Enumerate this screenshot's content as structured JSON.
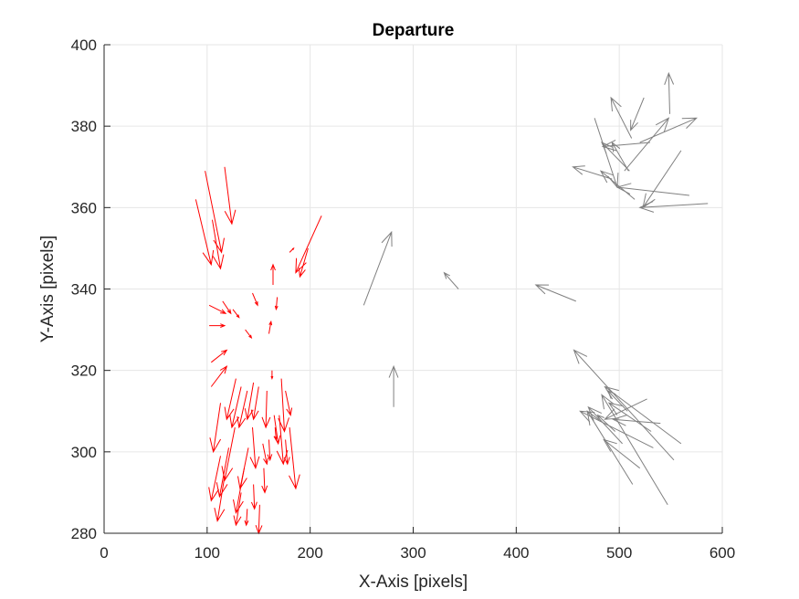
{
  "chart_data": {
    "type": "quiver",
    "title": "Departure",
    "xlabel": "X-Axis [pixels]",
    "ylabel": "Y-Axis [pixels]",
    "xlim": [
      0,
      600
    ],
    "ylim": [
      280,
      400
    ],
    "xticks": [
      0,
      100,
      200,
      300,
      400,
      500,
      600
    ],
    "yticks": [
      280,
      300,
      320,
      340,
      360,
      380,
      400
    ],
    "xtick_labels": [
      "0",
      "100",
      "200",
      "300",
      "400",
      "500",
      "600"
    ],
    "ytick_labels": [
      "280",
      "300",
      "320",
      "340",
      "360",
      "380",
      "400"
    ],
    "grid": true,
    "colors": {
      "red": "#ff0000",
      "gray": "#808080",
      "axis": "#262626",
      "grid": "#e6e6e6"
    },
    "series": [
      {
        "color": "red",
        "arrows": [
          [
            98,
            369,
            114,
            349
          ],
          [
            117,
            370,
            124,
            356
          ],
          [
            89,
            362,
            104,
            346
          ],
          [
            105,
            357,
            113,
            345
          ],
          [
            102,
            336,
            118,
            334
          ],
          [
            102,
            331,
            117,
            331
          ],
          [
            104,
            316,
            119,
            321
          ],
          [
            104,
            322,
            119,
            325
          ],
          [
            115,
            337,
            123,
            334
          ],
          [
            125,
            335,
            131,
            333
          ],
          [
            137,
            330,
            143,
            328
          ],
          [
            144,
            339,
            149,
            336
          ],
          [
            211,
            358,
            186,
            344
          ],
          [
            198,
            350,
            190,
            343
          ],
          [
            180,
            349,
            184,
            350
          ],
          [
            164,
            341,
            164,
            346
          ],
          [
            168,
            338,
            167,
            335
          ],
          [
            160,
            329,
            162,
            332
          ],
          [
            163,
            320,
            163,
            318
          ],
          [
            176,
            315,
            181,
            309
          ],
          [
            113,
            312,
            106,
            300
          ],
          [
            113,
            299,
            104,
            288
          ],
          [
            117,
            294,
            110,
            283
          ],
          [
            121,
            301,
            112,
            289
          ],
          [
            127,
            306,
            117,
            293
          ],
          [
            133,
            290,
            128,
            282
          ],
          [
            136,
            296,
            128,
            285
          ],
          [
            140,
            301,
            132,
            291
          ],
          [
            139,
            286,
            138,
            282
          ],
          [
            145,
            292,
            146,
            286
          ],
          [
            144,
            306,
            147,
            296
          ],
          [
            151,
            287,
            150,
            280
          ],
          [
            155,
            296,
            156,
            290
          ],
          [
            154,
            302,
            158,
            297
          ],
          [
            160,
            303,
            161,
            298
          ],
          [
            170,
            309,
            174,
            297
          ],
          [
            176,
            303,
            178,
            297
          ],
          [
            180,
            306,
            186,
            291
          ],
          [
            166,
            306,
            167,
            303
          ],
          [
            128,
            318,
            119,
            308
          ],
          [
            133,
            316,
            124,
            306
          ],
          [
            139,
            315,
            131,
            306
          ],
          [
            145,
            317,
            139,
            308
          ],
          [
            150,
            316,
            145,
            308
          ],
          [
            158,
            315,
            157,
            306
          ],
          [
            165,
            309,
            169,
            302
          ],
          [
            172,
            318,
            175,
            305
          ]
        ]
      },
      {
        "color": "gray",
        "arrows": [
          [
            252,
            336,
            279,
            354
          ],
          [
            344,
            340,
            330,
            344
          ],
          [
            281,
            311,
            281,
            321
          ],
          [
            458,
            337,
            419,
            341
          ],
          [
            476,
            382,
            498,
            365
          ],
          [
            505,
            369,
            548,
            382
          ],
          [
            510,
            369,
            483,
            376
          ],
          [
            520,
            376,
            575,
            382
          ],
          [
            530,
            376,
            484,
            375
          ],
          [
            515,
            362,
            482,
            369
          ],
          [
            493,
            367,
            455,
            370
          ],
          [
            509,
            369,
            493,
            376
          ],
          [
            524,
            387,
            511,
            379
          ],
          [
            549,
            383,
            548,
            393
          ],
          [
            512,
            377,
            492,
            387
          ],
          [
            568,
            363,
            498,
            365
          ],
          [
            586,
            361,
            520,
            360
          ],
          [
            560,
            374,
            523,
            360
          ],
          [
            560,
            302,
            486,
            316
          ],
          [
            553,
            298,
            456,
            325
          ],
          [
            547,
            287,
            483,
            314
          ],
          [
            533,
            301,
            462,
            310
          ],
          [
            513,
            292,
            469,
            310
          ],
          [
            531,
            305,
            490,
            312
          ],
          [
            540,
            307,
            494,
            308
          ],
          [
            520,
            296,
            485,
            303
          ],
          [
            503,
            302,
            470,
            311
          ],
          [
            527,
            313,
            486,
            308
          ],
          [
            508,
            310,
            489,
            315
          ],
          [
            496,
            305,
            479,
            309
          ]
        ]
      }
    ]
  }
}
